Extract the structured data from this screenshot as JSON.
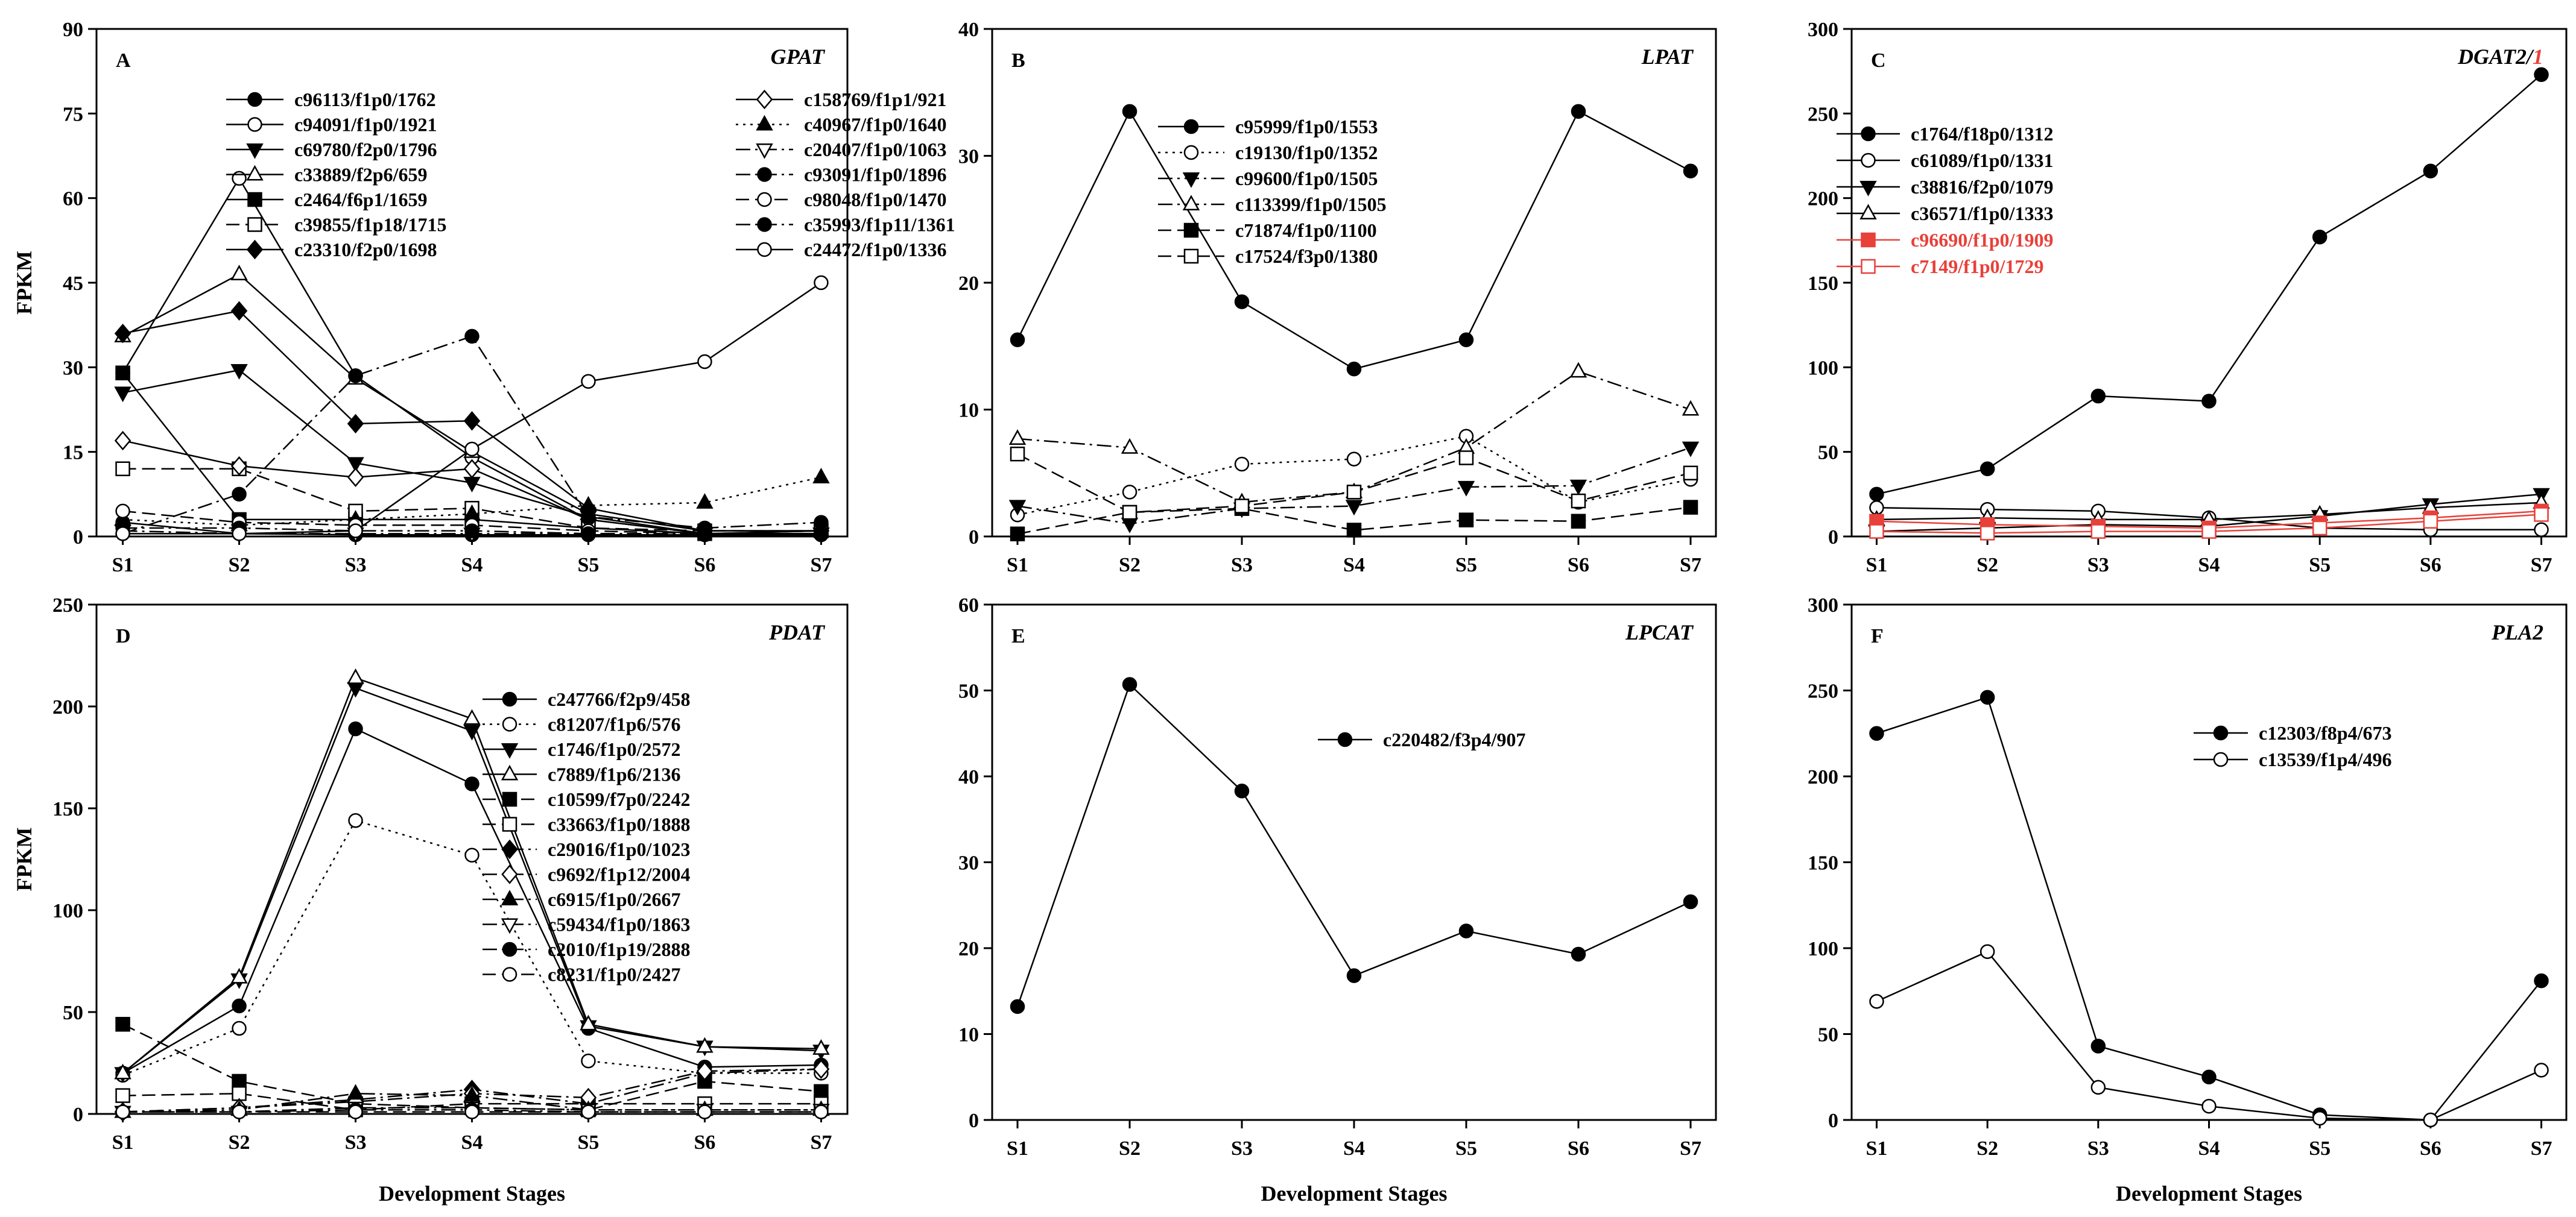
{
  "figure": {
    "stages": [
      "S1",
      "S2",
      "S3",
      "S4",
      "S5",
      "S6",
      "S7"
    ],
    "y_label": "FPKM",
    "x_label": "Development Stages"
  },
  "chart_data": [
    {
      "type": "line",
      "panel_letter": "A",
      "title": "GPAT",
      "title_extra": "",
      "xlabel": "",
      "ylabel": "FPKM",
      "ylim": [
        0,
        90
      ],
      "yticks": [
        0,
        15,
        30,
        45,
        60,
        75,
        90
      ],
      "categories": [
        "S1",
        "S2",
        "S3",
        "S4",
        "S5",
        "S6",
        "S7"
      ],
      "legend_position": "top-right",
      "legend_columns": 2,
      "series": [
        {
          "name": "c96113/f1p0/1762",
          "marker": "circle-filled",
          "dash": "solid",
          "color": "#000000",
          "values": [
            2.5,
            0.5,
            0.3,
            0.3,
            0.3,
            0.3,
            0.3
          ]
        },
        {
          "name": "c94091/f1p0/1921",
          "marker": "circle-open",
          "dash": "solid",
          "color": "#000000",
          "values": [
            29,
            63.5,
            28.5,
            14,
            3,
            0.5,
            0.5
          ]
        },
        {
          "name": "c69780/f2p0/1796",
          "marker": "triangle-down-filled",
          "dash": "solid",
          "color": "#000000",
          "values": [
            25.5,
            29.5,
            13,
            9.5,
            3.5,
            0.5,
            0.5
          ]
        },
        {
          "name": "c33889/f2p6/659",
          "marker": "triangle-up-open",
          "dash": "solid",
          "color": "#000000",
          "values": [
            35.5,
            46.5,
            28,
            15,
            4,
            1,
            1
          ]
        },
        {
          "name": "c2464/f6p1/1659",
          "marker": "square-filled",
          "dash": "solid",
          "color": "#000000",
          "values": [
            29,
            3,
            3,
            3,
            1.5,
            0.5,
            1
          ]
        },
        {
          "name": "c39855/f1p18/1715",
          "marker": "square-open",
          "dash": "dashed",
          "color": "#000000",
          "values": [
            12,
            12,
            4.5,
            5,
            1.5,
            1,
            1
          ]
        },
        {
          "name": "c23310/f2p0/1698",
          "marker": "diamond-filled",
          "dash": "solid",
          "color": "#000000",
          "values": [
            36,
            40,
            20,
            20.5,
            5,
            1,
            1
          ]
        },
        {
          "name": "c158769/f1p1/921",
          "marker": "diamond-open",
          "dash": "solid",
          "color": "#000000",
          "values": [
            17,
            12.5,
            10.5,
            12,
            3,
            0.5,
            1
          ]
        },
        {
          "name": "c40967/f1p0/1640",
          "marker": "triangle-up-filled",
          "dash": "dotted",
          "color": "#000000",
          "values": [
            3,
            2,
            3,
            4,
            5.5,
            6,
            10.5
          ]
        },
        {
          "name": "c20407/f1p0/1063",
          "marker": "triangle-down-open",
          "dash": "dash-dot",
          "color": "#000000",
          "values": [
            1,
            0.5,
            0.5,
            0.5,
            0.5,
            0.5,
            0.5
          ]
        },
        {
          "name": "c93091/f1p0/1896",
          "marker": "circle-filled",
          "dash": "dash-dot",
          "color": "#000000",
          "values": [
            0.5,
            7.5,
            28.5,
            35.5,
            3.5,
            1.5,
            2.5
          ]
        },
        {
          "name": "c98048/f1p0/1470",
          "marker": "circle-open",
          "dash": "dashed",
          "color": "#000000",
          "values": [
            4.5,
            2.5,
            2,
            2,
            1,
            0.5,
            0.5
          ]
        },
        {
          "name": "c35993/f1p11/1361",
          "marker": "circle-filled",
          "dash": "dash-dot",
          "color": "#000000",
          "values": [
            1.5,
            1.5,
            1,
            1,
            0.5,
            0.5,
            0.5
          ]
        },
        {
          "name": "c24472/f1p0/1336",
          "marker": "circle-open",
          "dash": "solid",
          "color": "#000000",
          "values": [
            0.5,
            0.5,
            1,
            15.5,
            27.5,
            31,
            45
          ]
        }
      ]
    },
    {
      "type": "line",
      "panel_letter": "B",
      "title": "LPAT",
      "title_extra": "",
      "xlabel": "",
      "ylabel": "",
      "ylim": [
        0,
        40
      ],
      "yticks": [
        0,
        10,
        20,
        30,
        40
      ],
      "categories": [
        "S1",
        "S2",
        "S3",
        "S4",
        "S5",
        "S6",
        "S7"
      ],
      "legend_position": "top-center",
      "legend_columns": 1,
      "series": [
        {
          "name": "c95999/f1p0/1553",
          "marker": "circle-filled",
          "dash": "solid",
          "color": "#000000",
          "values": [
            15.5,
            33.5,
            18.5,
            13.2,
            15.5,
            33.5,
            28.8
          ]
        },
        {
          "name": "c19130/f1p0/1352",
          "marker": "circle-open",
          "dash": "dotted",
          "color": "#000000",
          "values": [
            1.7,
            3.5,
            5.7,
            6.1,
            7.9,
            2.7,
            4.5
          ]
        },
        {
          "name": "c99600/f1p0/1505",
          "marker": "triangle-down-filled",
          "dash": "dash-dot",
          "color": "#000000",
          "values": [
            2.4,
            1,
            2.2,
            2.4,
            3.9,
            4,
            7
          ]
        },
        {
          "name": "c113399/f1p0/1505",
          "marker": "triangle-up-open",
          "dash": "dash-dot",
          "color": "#000000",
          "values": [
            7.7,
            7,
            2.7,
            3.5,
            7,
            13,
            10
          ]
        },
        {
          "name": "c71874/f1p0/1100",
          "marker": "square-filled",
          "dash": "dashed",
          "color": "#000000",
          "values": [
            0.2,
            1.9,
            2.2,
            0.5,
            1.3,
            1.2,
            2.3
          ]
        },
        {
          "name": "c17524/f3p0/1380",
          "marker": "square-open",
          "dash": "dashed",
          "color": "#000000",
          "values": [
            6.5,
            1.9,
            2.4,
            3.5,
            6.2,
            2.8,
            5
          ]
        }
      ]
    },
    {
      "type": "line",
      "panel_letter": "C",
      "title": "DGAT2/",
      "title_extra": "1",
      "xlabel": "",
      "ylabel": "",
      "ylim": [
        0,
        300
      ],
      "yticks": [
        0,
        50,
        100,
        150,
        200,
        250,
        300
      ],
      "categories": [
        "S1",
        "S2",
        "S3",
        "S4",
        "S5",
        "S6",
        "S7"
      ],
      "legend_position": "top-left",
      "legend_columns": 1,
      "series": [
        {
          "name": "c1764/f18p0/1312",
          "marker": "circle-filled",
          "dash": "solid",
          "color": "#000000",
          "values": [
            25,
            40,
            83,
            80,
            177,
            216,
            273
          ]
        },
        {
          "name": "c61089/f1p0/1331",
          "marker": "circle-open",
          "dash": "solid",
          "color": "#000000",
          "values": [
            17,
            16,
            15,
            11,
            5,
            4,
            4
          ]
        },
        {
          "name": "c38816/f2p0/1079",
          "marker": "triangle-down-filled",
          "dash": "solid",
          "color": "#000000",
          "values": [
            3,
            5,
            7,
            6,
            12,
            19,
            25
          ]
        },
        {
          "name": "c36571/f1p0/1333",
          "marker": "triangle-up-open",
          "dash": "solid",
          "color": "#000000",
          "values": [
            10,
            11,
            10,
            10,
            13,
            17,
            20
          ]
        },
        {
          "name": "c96690/f1p0/1909",
          "marker": "square-filled",
          "dash": "solid",
          "color": "#e8403a",
          "values": [
            9,
            7,
            6,
            5,
            8,
            11,
            15
          ]
        },
        {
          "name": "c7149/f1p0/1729",
          "marker": "square-open",
          "dash": "solid",
          "color": "#e8403a",
          "values": [
            3,
            2,
            3,
            3,
            5,
            9,
            13
          ]
        }
      ]
    },
    {
      "type": "line",
      "panel_letter": "D",
      "title": "PDAT",
      "title_extra": "",
      "xlabel": "Development Stages",
      "ylabel": "FPKM",
      "ylim": [
        0,
        250
      ],
      "yticks": [
        0,
        50,
        100,
        150,
        200,
        250
      ],
      "categories": [
        "S1",
        "S2",
        "S3",
        "S4",
        "S5",
        "S6",
        "S7"
      ],
      "legend_position": "top-right",
      "legend_columns": 1,
      "series": [
        {
          "name": "c247766/f2p9/458",
          "marker": "circle-filled",
          "dash": "solid",
          "color": "#000000",
          "values": [
            20,
            53,
            189,
            162,
            42,
            23,
            24
          ]
        },
        {
          "name": "c81207/f1p6/576",
          "marker": "circle-open",
          "dash": "dotted",
          "color": "#000000",
          "values": [
            19,
            42,
            144,
            127,
            26,
            20,
            20
          ]
        },
        {
          "name": "c1746/f1p0/2572",
          "marker": "triangle-down-filled",
          "dash": "solid",
          "color": "#000000",
          "values": [
            20,
            66,
            209,
            188,
            43,
            33,
            31
          ]
        },
        {
          "name": "c7889/f1p6/2136",
          "marker": "triangle-up-open",
          "dash": "solid",
          "color": "#000000",
          "values": [
            20,
            67,
            214,
            194,
            44,
            33,
            32
          ]
        },
        {
          "name": "c10599/f7p0/2242",
          "marker": "square-filled",
          "dash": "dashed",
          "color": "#000000",
          "values": [
            44,
            16,
            5,
            3,
            2,
            16,
            11
          ]
        },
        {
          "name": "c33663/f1p0/1888",
          "marker": "square-open",
          "dash": "dashed",
          "color": "#000000",
          "values": [
            9,
            10,
            2,
            5,
            5,
            5,
            5
          ]
        },
        {
          "name": "c29016/f1p0/1023",
          "marker": "diamond-filled",
          "dash": "dash-dot",
          "color": "#000000",
          "values": [
            1,
            3,
            7,
            12,
            5,
            20,
            22
          ]
        },
        {
          "name": "c9692/f1p12/2004",
          "marker": "diamond-open",
          "dash": "dash-dot",
          "color": "#000000",
          "values": [
            1,
            3,
            6,
            10,
            8,
            21,
            22
          ]
        },
        {
          "name": "c6915/f1p0/2667",
          "marker": "triangle-up-filled",
          "dash": "dash-dot",
          "color": "#000000",
          "values": [
            1,
            2,
            10,
            9,
            2,
            2,
            2
          ]
        },
        {
          "name": "c59434/f1p0/1863",
          "marker": "triangle-down-open",
          "dash": "dash-dot",
          "color": "#000000",
          "values": [
            1,
            1,
            3,
            3,
            2,
            2,
            2
          ]
        },
        {
          "name": "c2010/f1p19/2888",
          "marker": "circle-filled",
          "dash": "dash-dot",
          "color": "#000000",
          "values": [
            1,
            1,
            2,
            2,
            1,
            1,
            1
          ]
        },
        {
          "name": "c8231/f1p0/2427",
          "marker": "circle-open",
          "dash": "dashed",
          "color": "#000000",
          "values": [
            1,
            1,
            1,
            1,
            1,
            1,
            1
          ]
        }
      ]
    },
    {
      "type": "line",
      "panel_letter": "E",
      "title": "LPCAT",
      "title_extra": "",
      "xlabel": "Development Stages",
      "ylabel": "",
      "ylim": [
        0,
        60
      ],
      "yticks": [
        0,
        10,
        20,
        30,
        40,
        50,
        60
      ],
      "categories": [
        "S1",
        "S2",
        "S3",
        "S4",
        "S5",
        "S6",
        "S7"
      ],
      "legend_position": "top-center",
      "legend_columns": 1,
      "series": [
        {
          "name": "c220482/f3p4/907",
          "marker": "circle-filled",
          "dash": "solid",
          "color": "#000000",
          "values": [
            13.2,
            50.7,
            38.3,
            16.8,
            22,
            19.3,
            25.4
          ]
        }
      ]
    },
    {
      "type": "line",
      "panel_letter": "F",
      "title": "PLA2",
      "title_extra": "",
      "xlabel": "Development Stages",
      "ylabel": "",
      "ylim": [
        0,
        300
      ],
      "yticks": [
        0,
        50,
        100,
        150,
        200,
        250,
        300
      ],
      "categories": [
        "S1",
        "S2",
        "S3",
        "S4",
        "S5",
        "S6",
        "S7"
      ],
      "legend_position": "top-right",
      "legend_columns": 1,
      "series": [
        {
          "name": "c12303/f8p4/673",
          "marker": "circle-filled",
          "dash": "solid",
          "color": "#000000",
          "values": [
            225,
            246,
            43,
            25,
            3,
            0,
            81
          ]
        },
        {
          "name": "c13539/f1p4/496",
          "marker": "circle-open",
          "dash": "solid",
          "color": "#000000",
          "values": [
            69,
            98,
            19,
            8,
            1,
            0,
            29
          ]
        }
      ]
    }
  ]
}
